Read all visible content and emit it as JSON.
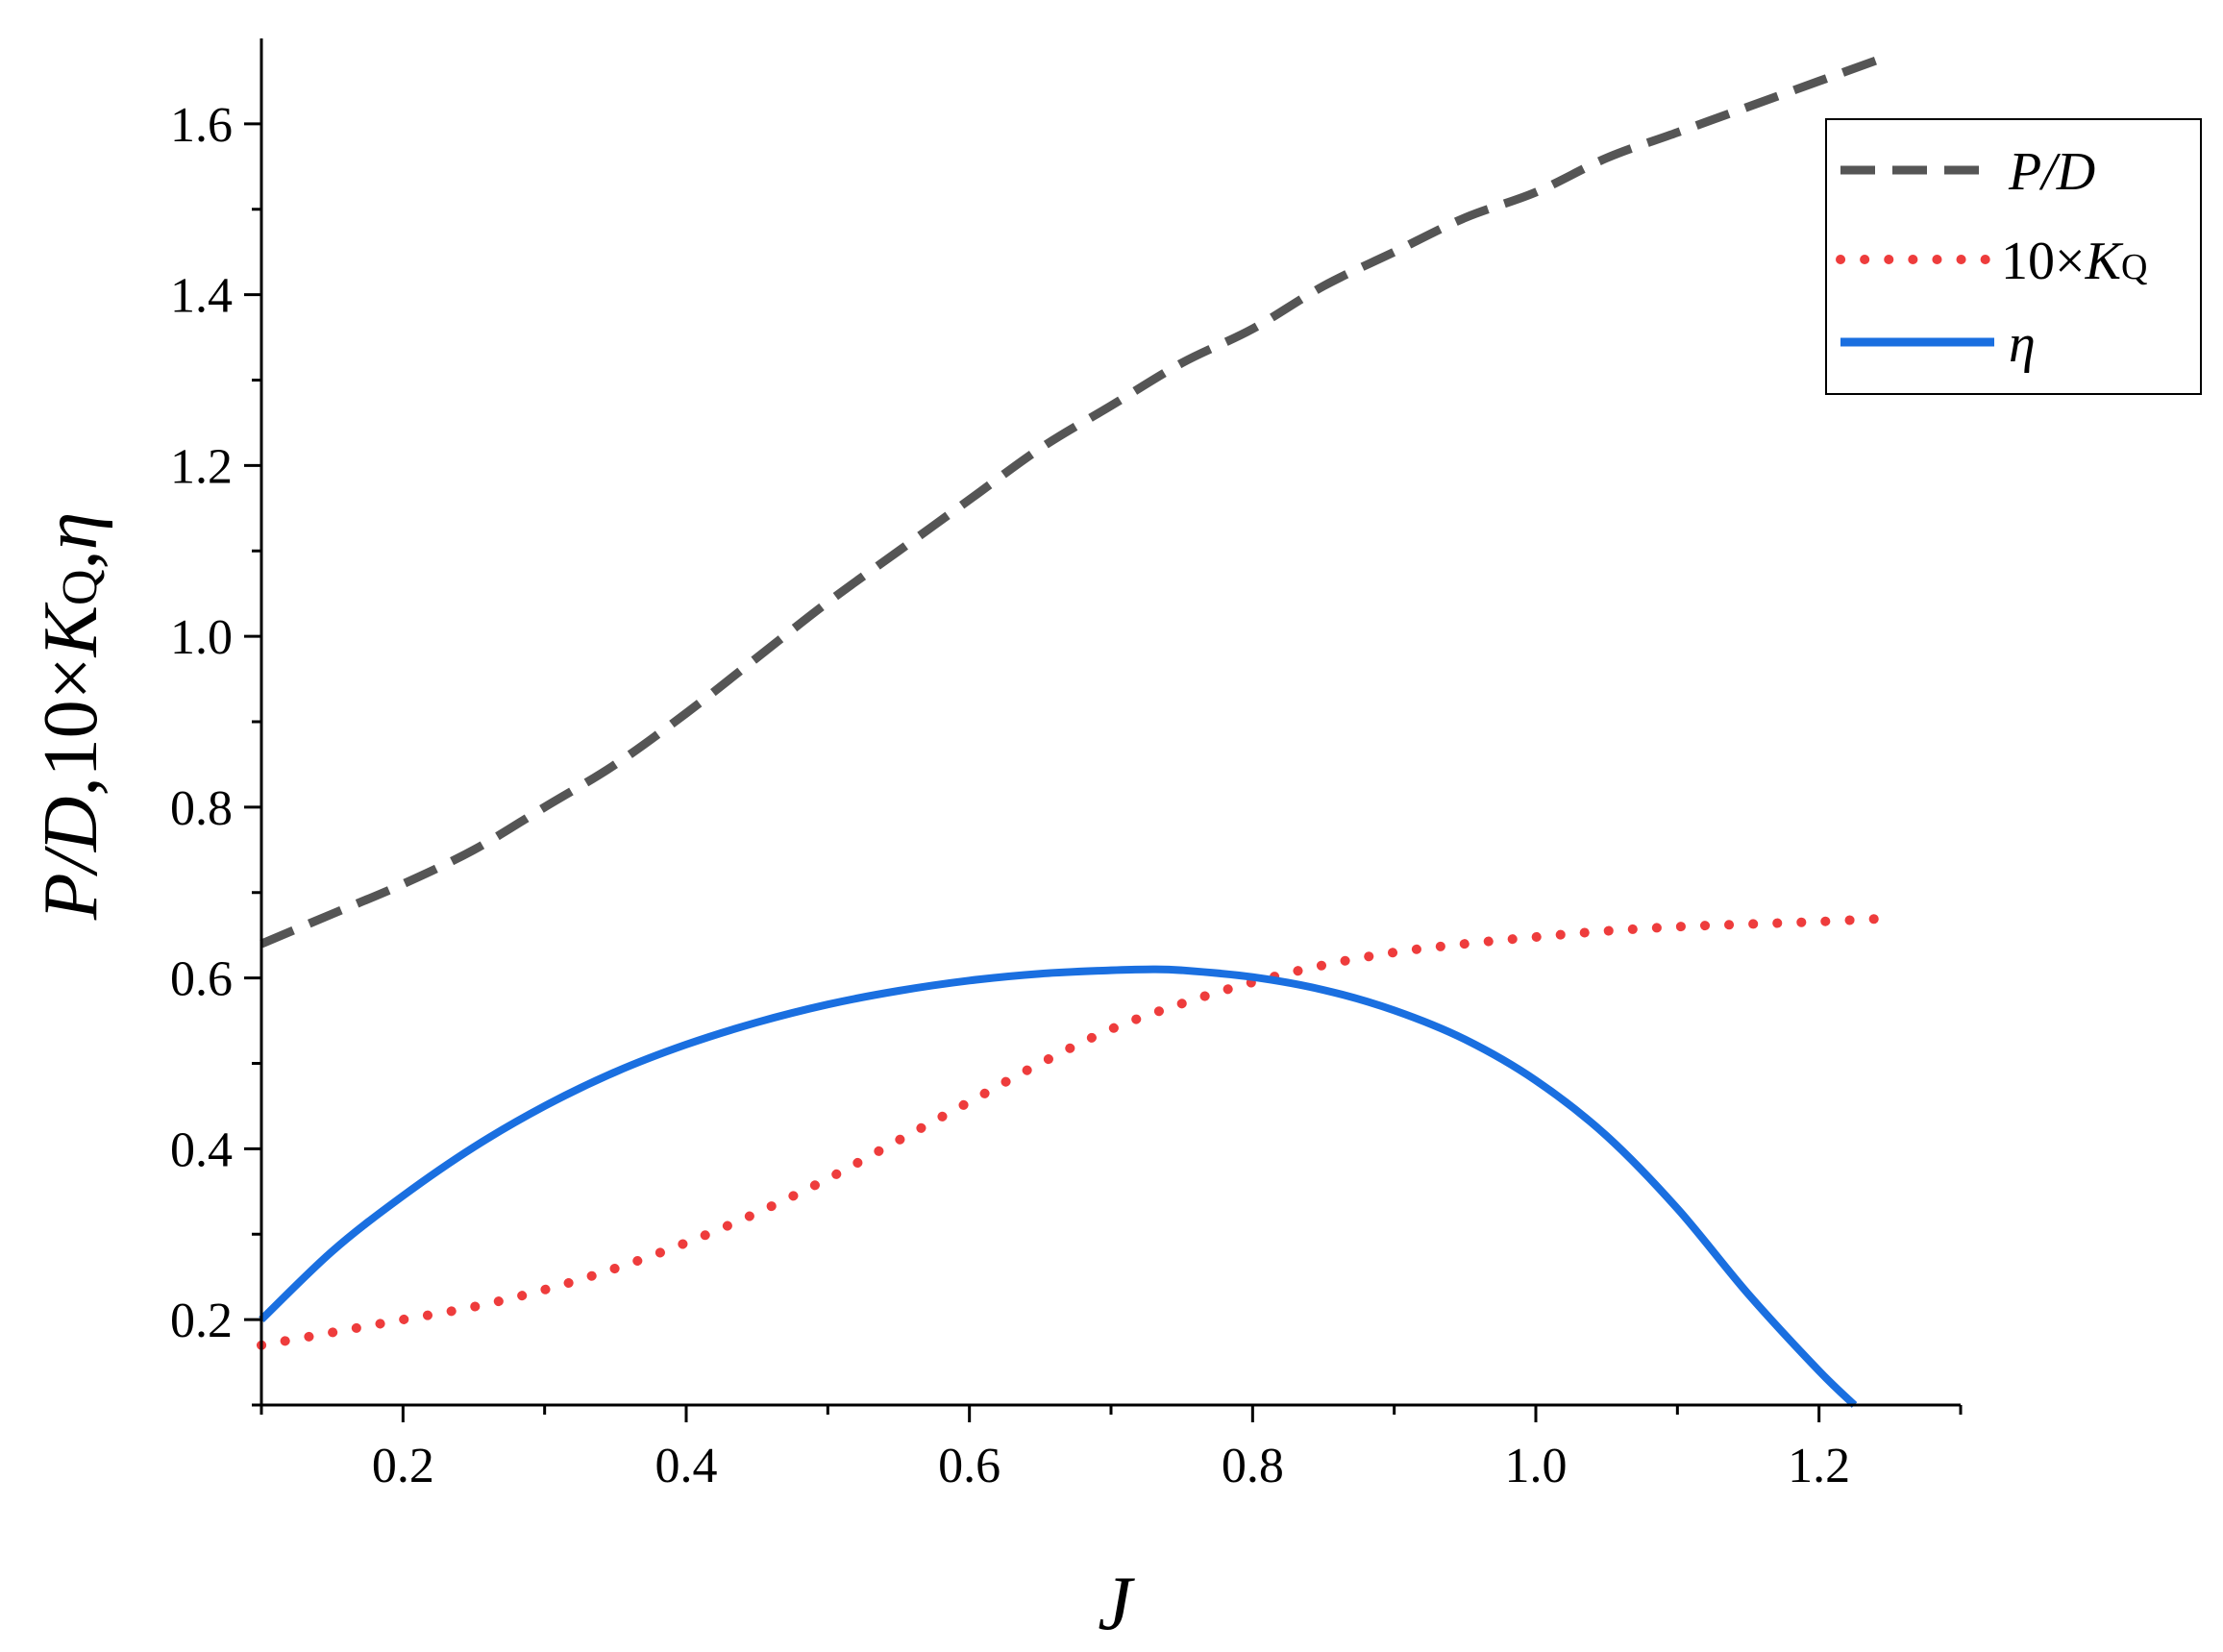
{
  "chart_data": {
    "type": "line",
    "xlabel": "J",
    "ylabel": {
      "part1": "P/D",
      "part2": ",10×",
      "part3": "K",
      "part3_sub": "Q",
      "part4": ",",
      "part5": "η"
    },
    "xlim": [
      0.1,
      1.3
    ],
    "ylim": [
      0.1,
      1.7
    ],
    "x_ticks": [
      "0.2",
      "0.4",
      "0.6",
      "0.8",
      "1.0",
      "1.2"
    ],
    "y_ticks": [
      "0.2",
      "0.4",
      "0.6",
      "0.8",
      "1.0",
      "1.2",
      "1.4",
      "1.6"
    ],
    "grid": false,
    "legend_position": "top-right",
    "legend": [
      {
        "label": "P/D",
        "italic": true
      },
      {
        "label_prefix": "10×",
        "label_main": "K",
        "label_sub": "Q"
      },
      {
        "label": "η",
        "italic": true
      }
    ],
    "series": [
      {
        "name": "P/D",
        "color": "#555555",
        "style": "dashed",
        "x": [
          0.1,
          0.15,
          0.2,
          0.25,
          0.3,
          0.35,
          0.4,
          0.45,
          0.5,
          0.55,
          0.6,
          0.65,
          0.7,
          0.75,
          0.8,
          0.85,
          0.9,
          0.95,
          1.0,
          1.05,
          1.1,
          1.15,
          1.2,
          1.25
        ],
        "y": [
          0.64,
          0.675,
          0.71,
          0.75,
          0.8,
          0.85,
          0.91,
          0.975,
          1.04,
          1.1,
          1.16,
          1.22,
          1.27,
          1.32,
          1.36,
          1.41,
          1.45,
          1.49,
          1.52,
          1.56,
          1.59,
          1.62,
          1.65,
          1.68
        ]
      },
      {
        "name": "10×KQ",
        "color": "#ee3c3c",
        "style": "dotted",
        "x": [
          0.1,
          0.15,
          0.2,
          0.25,
          0.3,
          0.35,
          0.4,
          0.45,
          0.5,
          0.55,
          0.6,
          0.65,
          0.7,
          0.75,
          0.8,
          0.85,
          0.9,
          0.95,
          1.0,
          1.05,
          1.1,
          1.15,
          1.2,
          1.25
        ],
        "y": [
          0.17,
          0.185,
          0.2,
          0.215,
          0.235,
          0.26,
          0.29,
          0.325,
          0.365,
          0.41,
          0.455,
          0.5,
          0.54,
          0.57,
          0.595,
          0.615,
          0.63,
          0.64,
          0.648,
          0.655,
          0.66,
          0.663,
          0.666,
          0.67
        ]
      },
      {
        "name": "η",
        "color": "#1a6fe0",
        "style": "solid",
        "x": [
          0.1,
          0.15,
          0.2,
          0.25,
          0.3,
          0.35,
          0.4,
          0.45,
          0.5,
          0.55,
          0.6,
          0.65,
          0.7,
          0.725,
          0.75,
          0.8,
          0.85,
          0.9,
          0.95,
          1.0,
          1.05,
          1.1,
          1.15,
          1.2,
          1.225
        ],
        "y": [
          0.2,
          0.28,
          0.345,
          0.402,
          0.45,
          0.49,
          0.522,
          0.548,
          0.569,
          0.585,
          0.597,
          0.605,
          0.609,
          0.61,
          0.609,
          0.601,
          0.586,
          0.562,
          0.528,
          0.48,
          0.415,
          0.33,
          0.23,
          0.14,
          0.1
        ]
      }
    ]
  }
}
